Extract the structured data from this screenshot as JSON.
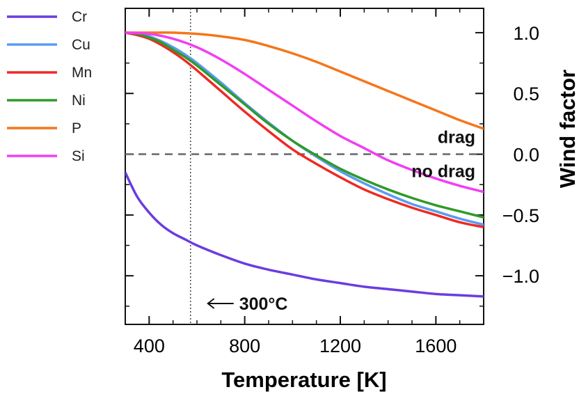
{
  "chart_data": {
    "type": "line",
    "xlabel": "Temperature [K]",
    "ylabel": "Wind factor",
    "xlim": [
      300,
      1800
    ],
    "ylim": [
      -1.4,
      1.2
    ],
    "x_ticks": [
      "400",
      "800",
      "1200",
      "1600"
    ],
    "y_ticks": [
      "1.0",
      "0.5",
      "0.0",
      "−0.5",
      "−1.0"
    ],
    "y_axis_side": "right",
    "legend": "outside-left",
    "reference_line_y": 0.0,
    "reference_line_x": 573,
    "annotations": {
      "above_zero": "drag",
      "below_zero": "no drag",
      "vertical_marker": "300°C"
    },
    "series": [
      {
        "name": "Cr",
        "color": "#6a3de0",
        "x": [
          300,
          350,
          400,
          450,
          500,
          550,
          600,
          700,
          800,
          900,
          1000,
          1100,
          1200,
          1300,
          1400,
          1500,
          1600,
          1700,
          1800
        ],
        "y": [
          -0.15,
          -0.35,
          -0.48,
          -0.58,
          -0.65,
          -0.7,
          -0.75,
          -0.83,
          -0.9,
          -0.95,
          -0.99,
          -1.03,
          -1.06,
          -1.09,
          -1.11,
          -1.13,
          -1.15,
          -1.16,
          -1.17
        ]
      },
      {
        "name": "Cu",
        "color": "#5b9bef",
        "x": [
          300,
          350,
          400,
          450,
          500,
          550,
          600,
          700,
          800,
          900,
          1000,
          1100,
          1200,
          1300,
          1400,
          1500,
          1600,
          1700,
          1800
        ],
        "y": [
          1.0,
          0.99,
          0.97,
          0.93,
          0.88,
          0.82,
          0.75,
          0.59,
          0.42,
          0.26,
          0.11,
          -0.02,
          -0.14,
          -0.24,
          -0.33,
          -0.41,
          -0.47,
          -0.53,
          -0.58
        ]
      },
      {
        "name": "Mn",
        "color": "#ee2a23",
        "x": [
          300,
          350,
          400,
          450,
          500,
          550,
          600,
          700,
          800,
          900,
          1000,
          1100,
          1200,
          1300,
          1400,
          1500,
          1600,
          1700,
          1800
        ],
        "y": [
          1.0,
          0.98,
          0.95,
          0.9,
          0.84,
          0.77,
          0.69,
          0.52,
          0.35,
          0.19,
          0.04,
          -0.08,
          -0.19,
          -0.29,
          -0.37,
          -0.44,
          -0.5,
          -0.56,
          -0.6
        ]
      },
      {
        "name": "Ni",
        "color": "#2f9a2a",
        "x": [
          300,
          350,
          400,
          450,
          500,
          550,
          600,
          700,
          800,
          900,
          1000,
          1100,
          1200,
          1300,
          1400,
          1500,
          1600,
          1700,
          1800
        ],
        "y": [
          1.0,
          0.99,
          0.96,
          0.92,
          0.86,
          0.8,
          0.73,
          0.57,
          0.41,
          0.25,
          0.11,
          -0.01,
          -0.12,
          -0.21,
          -0.29,
          -0.36,
          -0.42,
          -0.47,
          -0.52
        ]
      },
      {
        "name": "P",
        "color": "#f5761a",
        "x": [
          300,
          400,
          500,
          600,
          700,
          800,
          900,
          1000,
          1100,
          1200,
          1300,
          1400,
          1500,
          1600,
          1700,
          1800
        ],
        "y": [
          1.0,
          1.0,
          1.0,
          0.99,
          0.97,
          0.94,
          0.89,
          0.83,
          0.76,
          0.68,
          0.6,
          0.52,
          0.44,
          0.36,
          0.28,
          0.21
        ]
      },
      {
        "name": "Si",
        "color": "#f23ef2",
        "x": [
          300,
          400,
          500,
          600,
          700,
          800,
          900,
          1000,
          1100,
          1200,
          1300,
          1400,
          1500,
          1600,
          1700,
          1800
        ],
        "y": [
          1.0,
          0.99,
          0.95,
          0.88,
          0.78,
          0.66,
          0.53,
          0.4,
          0.27,
          0.15,
          0.05,
          -0.05,
          -0.13,
          -0.2,
          -0.26,
          -0.31
        ]
      }
    ]
  }
}
